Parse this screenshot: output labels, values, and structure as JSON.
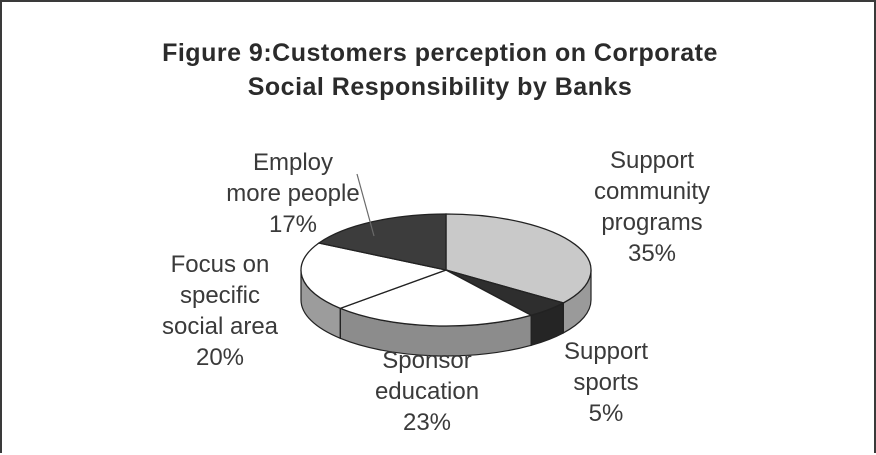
{
  "chart_data": {
    "type": "pie",
    "title_lines": [
      "Figure 9:Customers perception on Corporate",
      "Social Responsibility by Banks"
    ],
    "slices": [
      {
        "lines": [
          "Support",
          "community",
          "programs"
        ],
        "pct_label": "35%",
        "value": 35,
        "color": "#c9c9c9",
        "side": "#9a9a9a"
      },
      {
        "lines": [
          "Support",
          "sports"
        ],
        "pct_label": "5%",
        "value": 5,
        "color": "#2e2e2e",
        "side": "#252525"
      },
      {
        "lines": [
          "Sponsor",
          "education"
        ],
        "pct_label": "23%",
        "value": 23,
        "color": "#ffffff",
        "side": "#8c8c8c"
      },
      {
        "lines": [
          "Focus on",
          "specific",
          "social area"
        ],
        "pct_label": "20%",
        "value": 20,
        "color": "#ffffff",
        "side": "#9c9c9c"
      },
      {
        "lines": [
          "Employ",
          "more people"
        ],
        "pct_label": "17%",
        "value": 17,
        "color": "#3c3c3c",
        "side": "#2a2a2a"
      }
    ],
    "legend": "none",
    "style": "3d-pie"
  }
}
